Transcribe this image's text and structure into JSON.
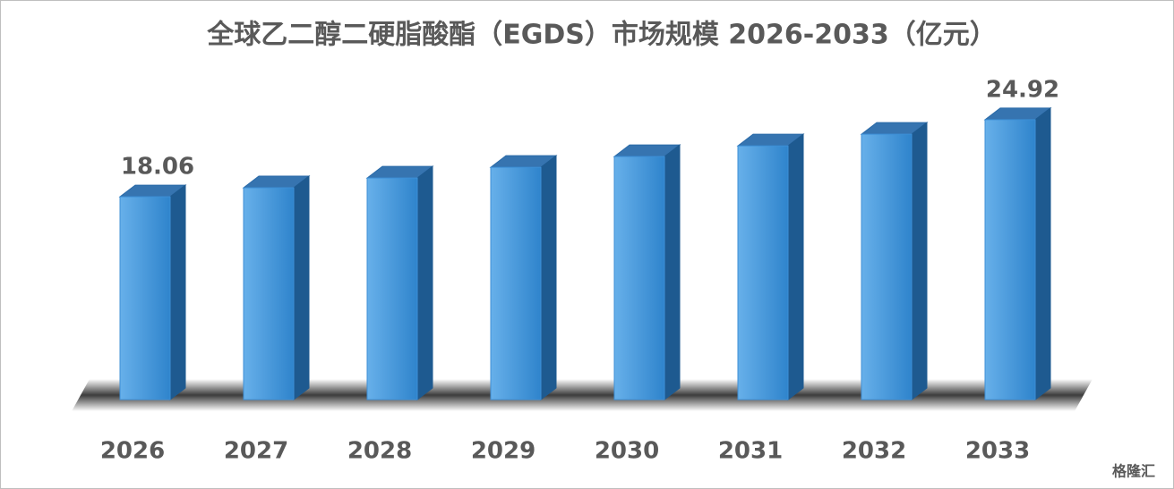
{
  "chart_data": {
    "type": "bar3d",
    "title": "全球乙二醇二硬脂酸酯（EGDS）市场规模 2026-2033（亿元）",
    "categories": [
      "2026",
      "2027",
      "2028",
      "2029",
      "2030",
      "2031",
      "2032",
      "2033"
    ],
    "values": [
      18.06,
      18.86,
      19.73,
      20.68,
      21.64,
      22.59,
      23.63,
      24.92
    ],
    "value_labels": [
      "18.06",
      null,
      null,
      null,
      null,
      null,
      null,
      "24.92"
    ],
    "color": "#3d8fd6",
    "watermark": "格隆汇"
  }
}
